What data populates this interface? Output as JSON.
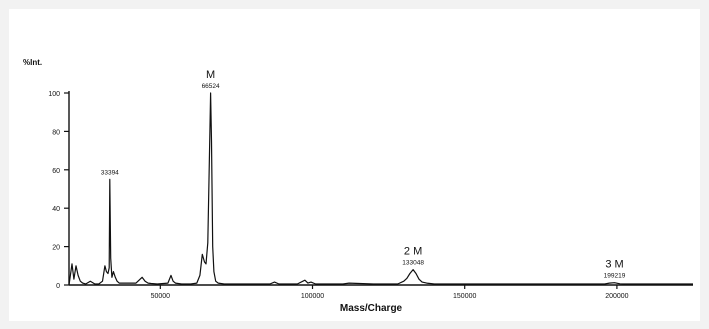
{
  "chart_data": {
    "type": "line",
    "title": "",
    "ylabel": "%Int.",
    "xlabel": "Mass/Charge",
    "xlim": [
      20000,
      225000
    ],
    "ylim": [
      0,
      100
    ],
    "xticks": [
      50000,
      100000,
      150000,
      200000
    ],
    "yticks": [
      0,
      20,
      40,
      60,
      80,
      100
    ],
    "grid": false,
    "series": [
      {
        "color": "#111111",
        "x": [
          20000,
          21000,
          21600,
          22300,
          23000,
          23700,
          24500,
          25500,
          27000,
          28500,
          29800,
          31000,
          31800,
          32300,
          32800,
          33200,
          33394,
          33700,
          34100,
          34600,
          35200,
          35800,
          36500,
          38000,
          42000,
          44000,
          45000,
          46000,
          47000,
          49000,
          52500,
          53500,
          54200,
          55000,
          57000,
          60000,
          62000,
          63000,
          63800,
          64500,
          65000,
          65600,
          66000,
          66300,
          66524,
          66800,
          67200,
          67600,
          68200,
          69000,
          71000,
          80000,
          86000,
          87500,
          89000,
          95000,
          97500,
          98500,
          99500,
          101000,
          105000,
          110000,
          112000,
          120000,
          128000,
          130000,
          131000,
          132000,
          133048,
          134000,
          135000,
          136000,
          137500,
          140000,
          150000,
          160000,
          170000,
          180000,
          190000,
          196000,
          197500,
          199219,
          201000,
          203000,
          210000,
          225000
        ],
        "y": [
          0,
          11,
          3,
          10,
          5,
          2,
          1,
          0.5,
          2,
          0.5,
          0.5,
          2,
          10,
          7,
          6,
          9,
          55,
          14,
          4,
          7,
          4,
          2,
          1,
          1,
          1,
          4,
          2,
          1,
          0.8,
          0.5,
          1,
          5,
          2,
          1,
          0.5,
          0.5,
          1,
          5,
          16,
          12,
          11,
          22,
          55,
          80,
          100,
          75,
          20,
          7,
          2,
          1,
          0.5,
          0.5,
          0.5,
          1.5,
          0.5,
          0.5,
          2.5,
          1,
          1.5,
          0.5,
          0.5,
          0.5,
          1,
          0.5,
          0.5,
          2,
          3.5,
          6,
          8,
          6,
          3,
          1.5,
          1,
          0.5,
          0.5,
          0.5,
          0.5,
          0.5,
          0.5,
          0.5,
          1,
          1.2,
          0.6,
          0.5,
          0.5,
          0.5
        ]
      }
    ],
    "peak_labels": [
      {
        "x": 33394,
        "y": 55,
        "text": "33394"
      },
      {
        "x": 66524,
        "y": 100,
        "text": "66524"
      },
      {
        "x": 133048,
        "y": 8,
        "text": "133048"
      },
      {
        "x": 199219,
        "y": 1.2,
        "text": "199219"
      }
    ],
    "annotations": [
      {
        "x": 66524,
        "y": 100,
        "text": "M"
      },
      {
        "x": 133048,
        "y": 8,
        "text": "2 M"
      },
      {
        "x": 199219,
        "y": 1.2,
        "text": "3 M"
      }
    ]
  }
}
